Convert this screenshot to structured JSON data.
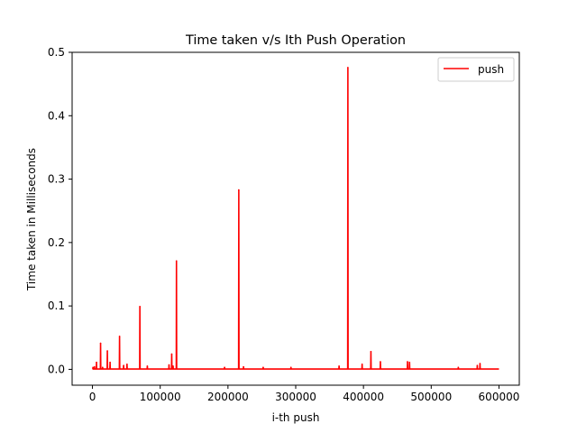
{
  "chart_data": {
    "type": "line",
    "title": "Time taken v/s Ith Push Operation",
    "xlabel": "i-th push",
    "ylabel": "Time taken in Milliseconds",
    "xlim": [
      -30000,
      630000
    ],
    "ylim": [
      -0.025,
      0.5
    ],
    "xticks": [
      0,
      100000,
      200000,
      300000,
      400000,
      500000,
      600000
    ],
    "xtick_labels": [
      "0",
      "100000",
      "200000",
      "300000",
      "400000",
      "500000",
      "600000"
    ],
    "yticks": [
      0.0,
      0.1,
      0.2,
      0.3,
      0.4,
      0.5
    ],
    "ytick_labels": [
      "0.0",
      "0.1",
      "0.2",
      "0.3",
      "0.4",
      "0.5"
    ],
    "grid": false,
    "legend_position": "top-right",
    "baseline": 0.0005,
    "series": [
      {
        "name": "push",
        "color": "#ff0000",
        "x_range": [
          0,
          600000
        ],
        "spikes": [
          {
            "x": 800,
            "y": 0.003
          },
          {
            "x": 3000,
            "y": 0.004
          },
          {
            "x": 6000,
            "y": 0.011
          },
          {
            "x": 12000,
            "y": 0.041
          },
          {
            "x": 15000,
            "y": 0.003
          },
          {
            "x": 22000,
            "y": 0.029
          },
          {
            "x": 26000,
            "y": 0.011
          },
          {
            "x": 40000,
            "y": 0.052
          },
          {
            "x": 46000,
            "y": 0.006
          },
          {
            "x": 51000,
            "y": 0.008
          },
          {
            "x": 70000,
            "y": 0.099
          },
          {
            "x": 81000,
            "y": 0.005
          },
          {
            "x": 113000,
            "y": 0.007
          },
          {
            "x": 117000,
            "y": 0.024
          },
          {
            "x": 119000,
            "y": 0.005
          },
          {
            "x": 124000,
            "y": 0.171
          },
          {
            "x": 195000,
            "y": 0.003
          },
          {
            "x": 216000,
            "y": 0.283
          },
          {
            "x": 223000,
            "y": 0.004
          },
          {
            "x": 252000,
            "y": 0.003
          },
          {
            "x": 293000,
            "y": 0.003
          },
          {
            "x": 364000,
            "y": 0.005
          },
          {
            "x": 377000,
            "y": 0.476
          },
          {
            "x": 398000,
            "y": 0.008
          },
          {
            "x": 411000,
            "y": 0.028
          },
          {
            "x": 425000,
            "y": 0.012
          },
          {
            "x": 465000,
            "y": 0.012
          },
          {
            "x": 468000,
            "y": 0.011
          },
          {
            "x": 540000,
            "y": 0.003
          },
          {
            "x": 568000,
            "y": 0.006
          },
          {
            "x": 572000,
            "y": 0.009
          }
        ]
      }
    ]
  }
}
